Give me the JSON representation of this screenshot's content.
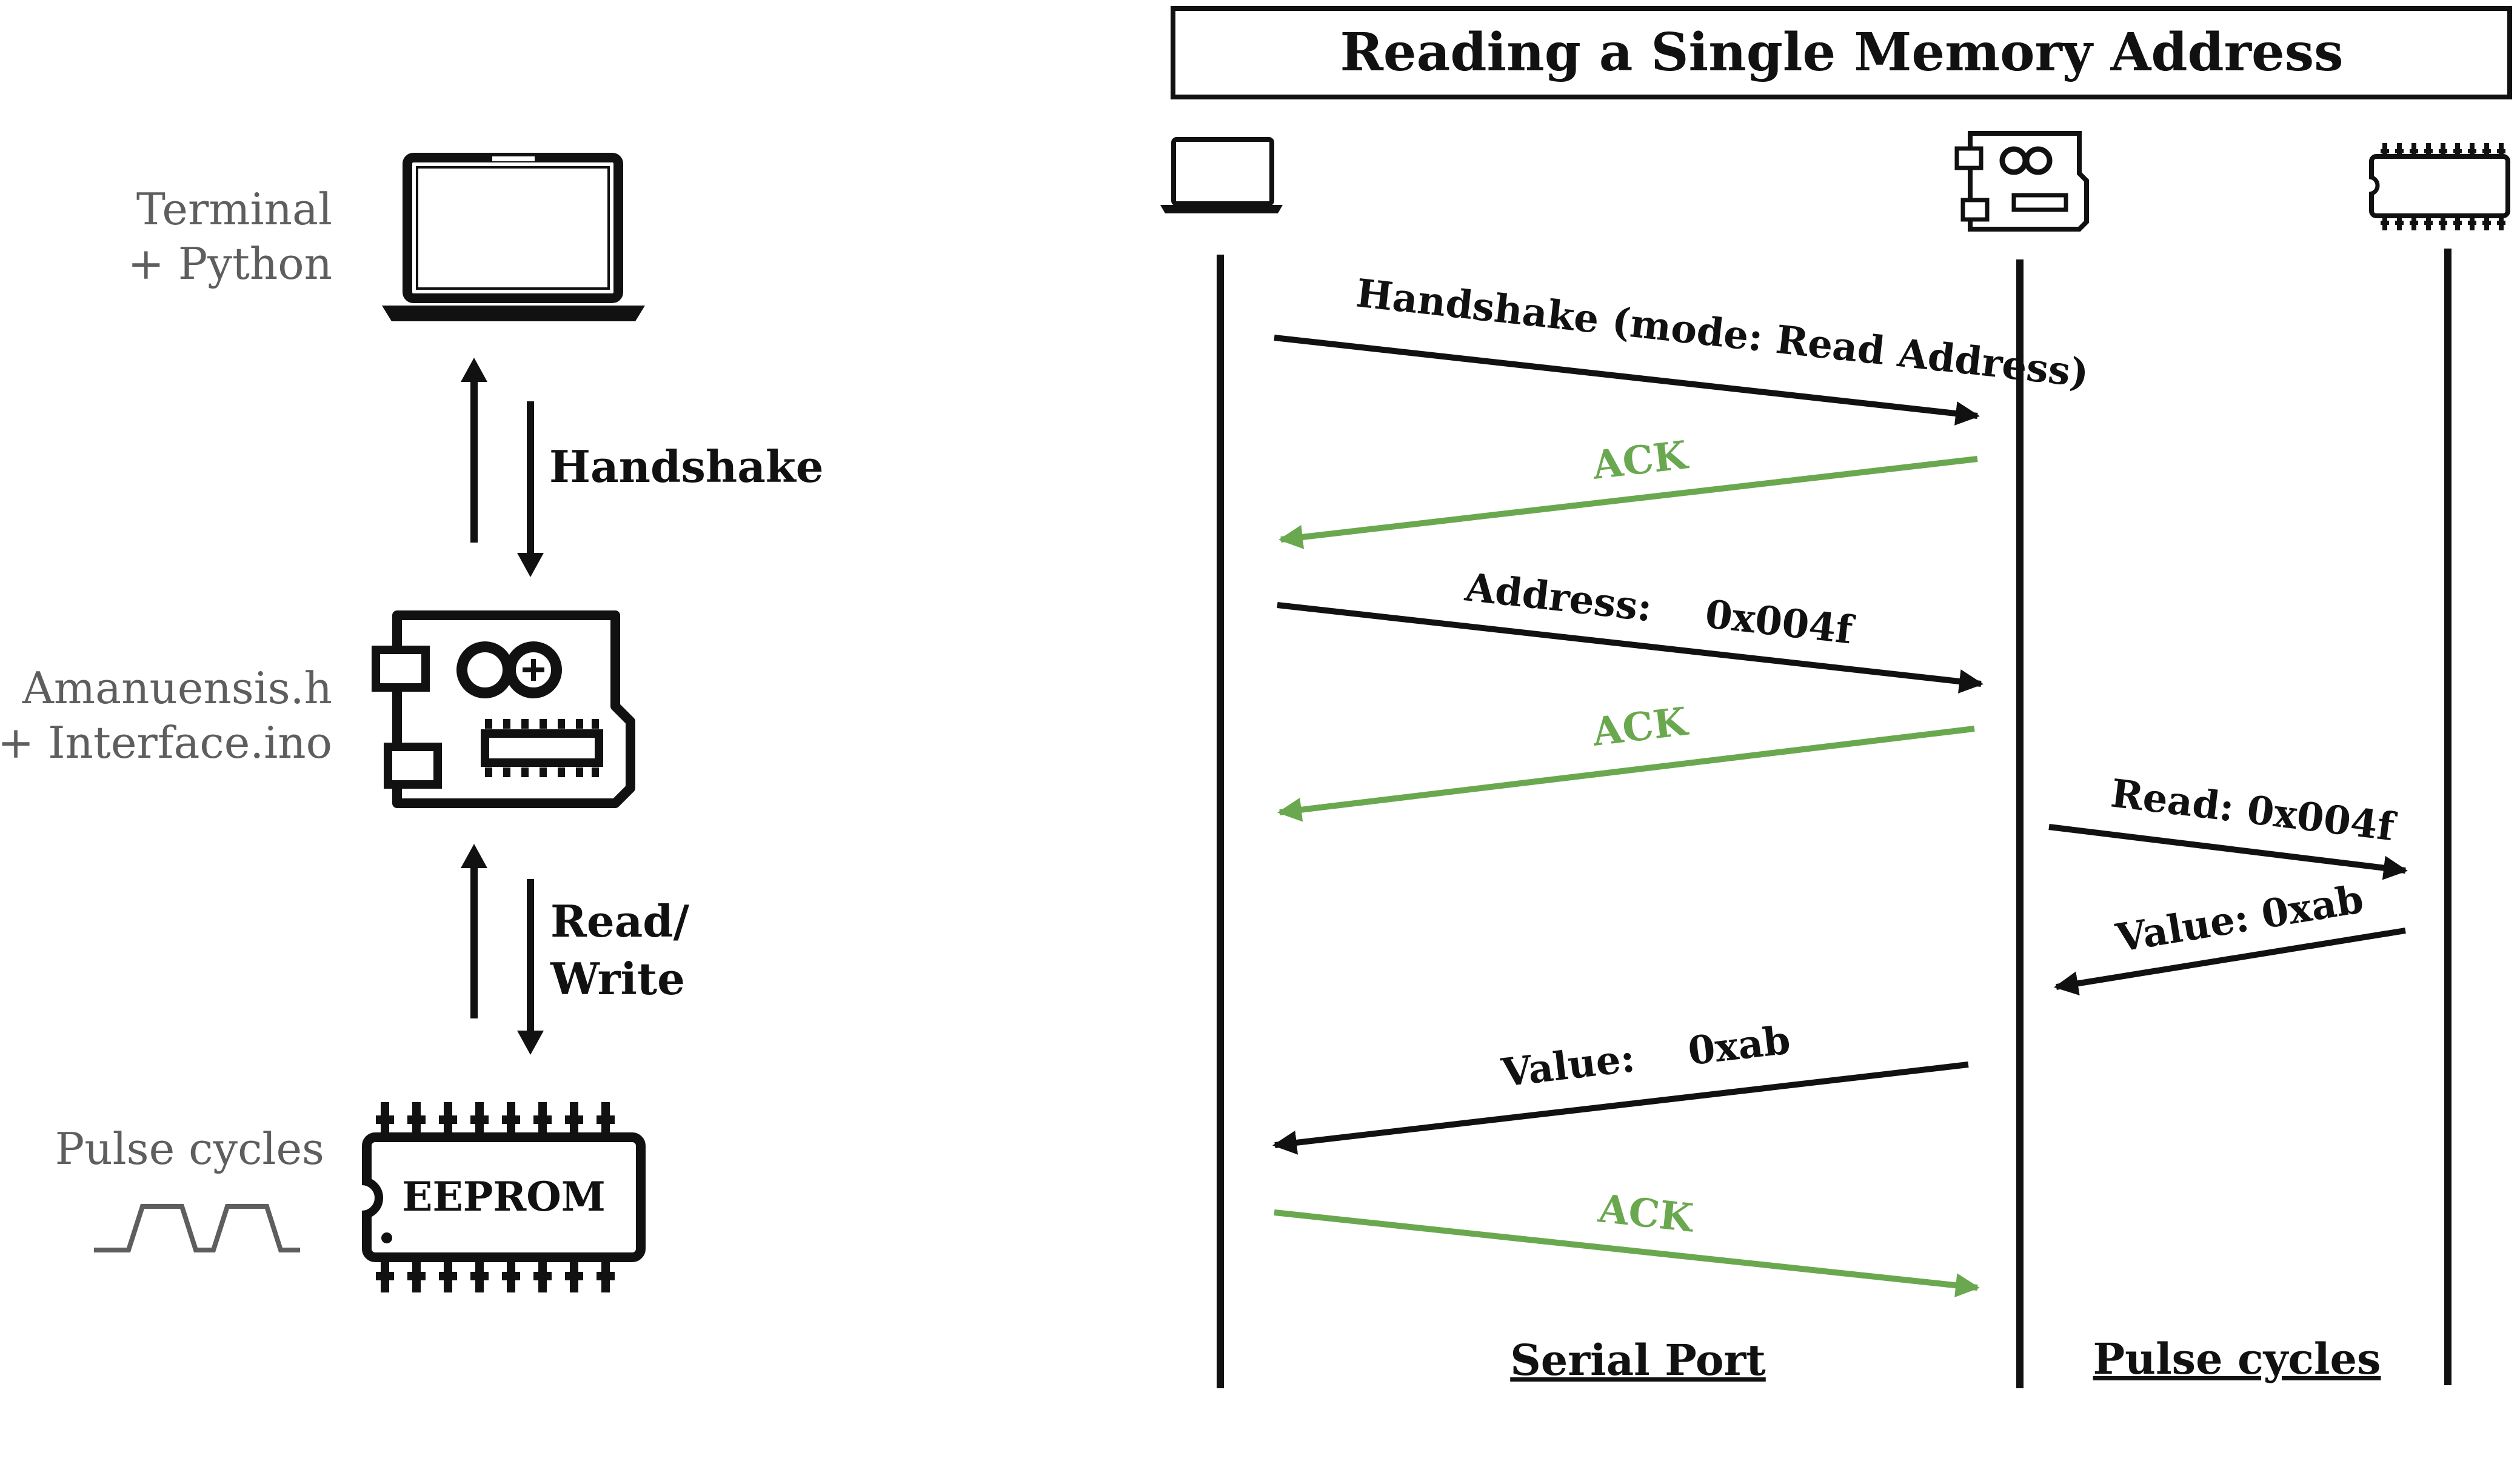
{
  "colors": {
    "ink": "#111111",
    "label_gray": "#5e5e5e",
    "ack_green": "#6aa84f"
  },
  "overview": {
    "terminal_label": [
      "Terminal",
      "+ Python"
    ],
    "handshake_label": "Handshake",
    "arduino_label": [
      "Amanuensis.h",
      "+ Interface.ino"
    ],
    "read_write_label": [
      "Read/",
      "Write"
    ],
    "pulse_label": "Pulse cycles",
    "eeprom_chip_label": "EEPROM",
    "icons": [
      "laptop-icon",
      "arduino-board-icon",
      "eeprom-chip-icon",
      "pulse-wave-icon",
      "arrow-up-icon",
      "arrow-down-icon"
    ]
  },
  "sequence": {
    "title": "Reading a Single Memory Address",
    "participants": [
      "laptop-icon",
      "arduino-board-icon",
      "eeprom-chip-icon"
    ],
    "messages": [
      {
        "label": "Handshake (mode: Read Address)",
        "from": "computer",
        "to": "arduino",
        "color": "#111111"
      },
      {
        "label": "ACK",
        "from": "arduino",
        "to": "computer",
        "color": "#6aa84f"
      },
      {
        "label": "Address:    0x004f",
        "from": "computer",
        "to": "arduino",
        "color": "#111111"
      },
      {
        "label": "ACK",
        "from": "arduino",
        "to": "computer",
        "color": "#6aa84f"
      },
      {
        "label": "Read: 0x004f",
        "from": "arduino",
        "to": "eeprom",
        "color": "#111111"
      },
      {
        "label": "Value: 0xab",
        "from": "eeprom",
        "to": "arduino",
        "color": "#111111"
      },
      {
        "label": "Value:    0xab",
        "from": "arduino",
        "to": "computer",
        "color": "#111111"
      },
      {
        "label": "ACK",
        "from": "computer",
        "to": "arduino",
        "color": "#6aa84f"
      }
    ],
    "channel_labels": [
      "Serial Port",
      "Pulse cycles"
    ]
  }
}
